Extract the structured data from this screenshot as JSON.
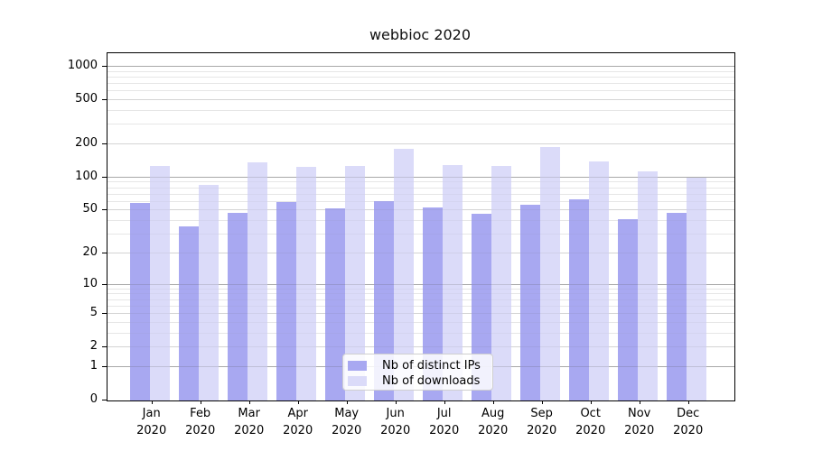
{
  "title": "webbioc 2020",
  "legend": {
    "items": [
      {
        "label": "Nb of distinct IPs",
        "color": "#a8a8f1"
      },
      {
        "label": "Nb of downloads",
        "color": "#dbdbf9"
      }
    ]
  },
  "chart_data": {
    "type": "bar",
    "title": "webbioc 2020",
    "categories": [
      "Jan",
      "Feb",
      "Mar",
      "Apr",
      "May",
      "Jun",
      "Jul",
      "Aug",
      "Sep",
      "Oct",
      "Nov",
      "Dec"
    ],
    "year": "2020",
    "series": [
      {
        "name": "Nb of distinct IPs",
        "color": "#a8a8f1",
        "values": [
          59,
          36,
          48,
          60,
          52,
          61,
          53,
          47,
          57,
          63,
          42,
          48
        ]
      },
      {
        "name": "Nb of downloads",
        "color": "#dbdbf9",
        "values": [
          127,
          86,
          137,
          126,
          127,
          181,
          131,
          127,
          190,
          139,
          114,
          100
        ]
      }
    ],
    "yscale": "log1p",
    "ylim": [
      0,
      1000
    ],
    "yticks": [
      0,
      1,
      2,
      5,
      10,
      20,
      50,
      100,
      200,
      500,
      1000
    ],
    "major_yticks": [
      1,
      10,
      100,
      1000
    ],
    "grid": true,
    "legend_position": "lower center"
  }
}
